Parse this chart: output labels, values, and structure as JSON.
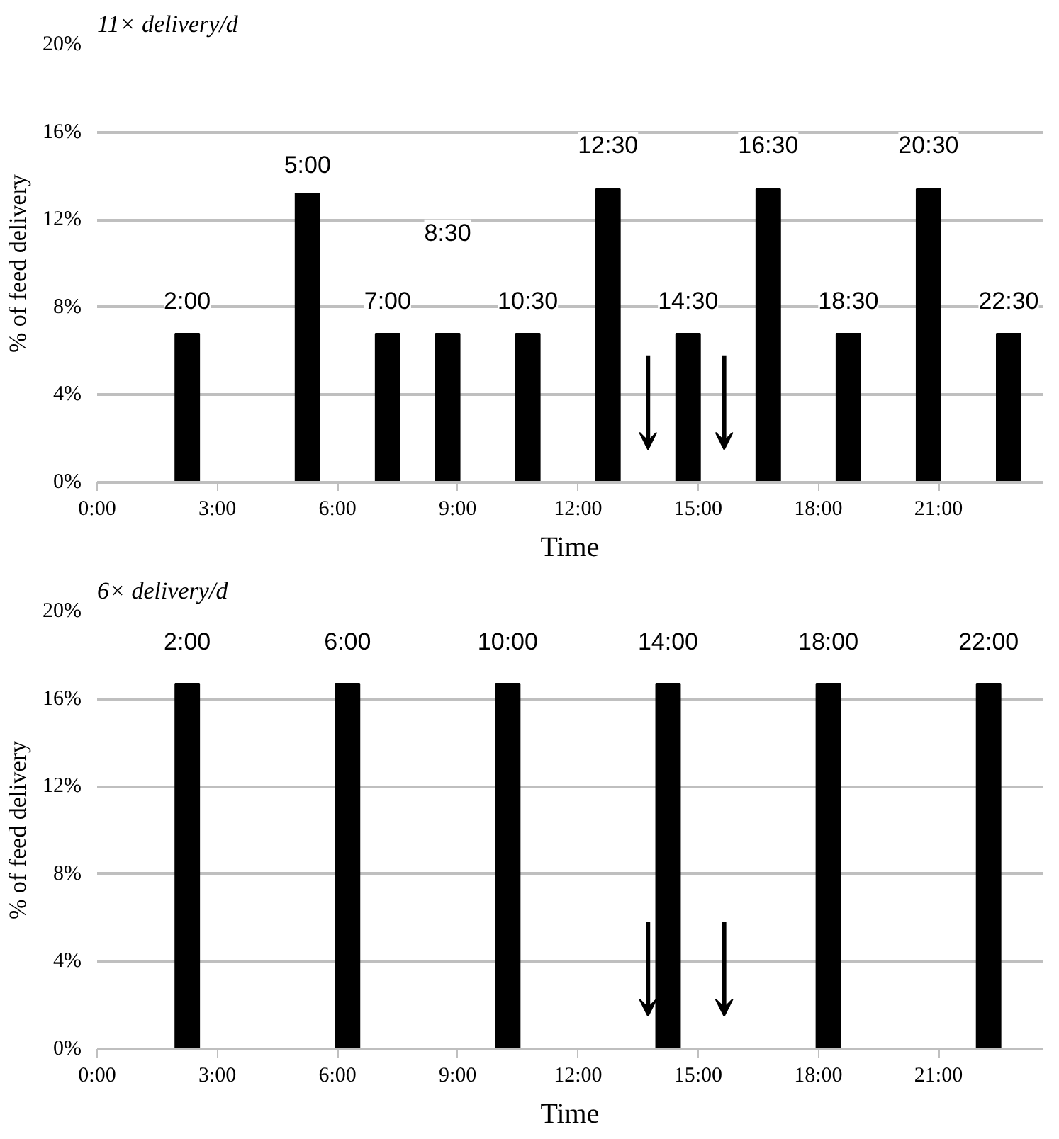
{
  "chart_data": [
    {
      "type": "bar",
      "title": "11× delivery/d",
      "xlabel": "Time",
      "ylabel": "% of feed delivery",
      "color": "#000000",
      "x": [
        2.25,
        5.25,
        7.25,
        8.75,
        10.75,
        12.75,
        14.75,
        16.75,
        18.75,
        20.75,
        22.75
      ],
      "values": [
        6.8,
        13.2,
        6.8,
        6.8,
        6.8,
        13.4,
        6.8,
        13.4,
        6.8,
        13.4,
        6.8
      ],
      "annotations": [
        {
          "text": "2:00",
          "x": 2.25,
          "y": 8.3
        },
        {
          "text": "5:00",
          "x": 5.25,
          "y": 14.5
        },
        {
          "text": "7:00",
          "x": 7.25,
          "y": 8.3
        },
        {
          "text": "8:30",
          "x": 8.75,
          "y": 11.4
        },
        {
          "text": "10:30",
          "x": 10.75,
          "y": 8.3
        },
        {
          "text": "12:30",
          "x": 12.75,
          "y": 15.4
        },
        {
          "text": "14:30",
          "x": 14.75,
          "y": 8.3
        },
        {
          "text": "16:30",
          "x": 16.75,
          "y": 15.4
        },
        {
          "text": "18:30",
          "x": 18.75,
          "y": 8.3
        },
        {
          "text": "20:30",
          "x": 20.75,
          "y": 15.4
        },
        {
          "text": "22:30",
          "x": 22.75,
          "y": 8.3
        }
      ],
      "xlim": [
        0,
        23.6
      ],
      "xticks": [
        {
          "value": 0,
          "label": "0:00"
        },
        {
          "value": 3,
          "label": "3:00"
        },
        {
          "value": 6,
          "label": "6:00"
        },
        {
          "value": 9,
          "label": "9:00"
        },
        {
          "value": 12,
          "label": "12:00"
        },
        {
          "value": 15,
          "label": "15:00"
        },
        {
          "value": 18,
          "label": "18:00"
        },
        {
          "value": 21,
          "label": "21:00"
        }
      ],
      "ylim": [
        0,
        20
      ],
      "yticks": [
        {
          "value": 0,
          "label": "0%"
        },
        {
          "value": 4,
          "label": "4%"
        },
        {
          "value": 8,
          "label": "8%"
        },
        {
          "value": 12,
          "label": "12%"
        },
        {
          "value": 16,
          "label": "16%"
        },
        {
          "value": 20,
          "label": "20%"
        }
      ],
      "grid": "y"
    },
    {
      "type": "bar",
      "title": "6× delivery/d",
      "xlabel": "Time",
      "ylabel": "% of feed delivery",
      "color": "#000000",
      "x": [
        2.25,
        6.25,
        10.25,
        14.25,
        18.25,
        22.25
      ],
      "values": [
        16.7,
        16.7,
        16.7,
        16.7,
        16.7,
        16.7
      ],
      "annotations": [
        {
          "text": "2:00",
          "x": 2.25,
          "y": 18.6
        },
        {
          "text": "6:00",
          "x": 6.25,
          "y": 18.6
        },
        {
          "text": "10:00",
          "x": 10.25,
          "y": 18.6
        },
        {
          "text": "14:00",
          "x": 14.25,
          "y": 18.6
        },
        {
          "text": "18:00",
          "x": 18.25,
          "y": 18.6
        },
        {
          "text": "22:00",
          "x": 22.25,
          "y": 18.6
        }
      ],
      "xlim": [
        0,
        23.6
      ],
      "xticks": [
        {
          "value": 0,
          "label": "0:00"
        },
        {
          "value": 3,
          "label": "3:00"
        },
        {
          "value": 6,
          "label": "6:00"
        },
        {
          "value": 9,
          "label": "9:00"
        },
        {
          "value": 12,
          "label": "12:00"
        },
        {
          "value": 15,
          "label": "15:00"
        },
        {
          "value": 18,
          "label": "18:00"
        },
        {
          "value": 21,
          "label": "21:00"
        }
      ],
      "ylim": [
        0,
        20
      ],
      "yticks": [
        {
          "value": 0,
          "label": "0%"
        },
        {
          "value": 4,
          "label": "4%"
        },
        {
          "value": 8,
          "label": "8%"
        },
        {
          "value": 12,
          "label": "12%"
        },
        {
          "value": 16,
          "label": "16%"
        },
        {
          "value": 20,
          "label": "20%"
        }
      ],
      "grid": "y"
    }
  ]
}
